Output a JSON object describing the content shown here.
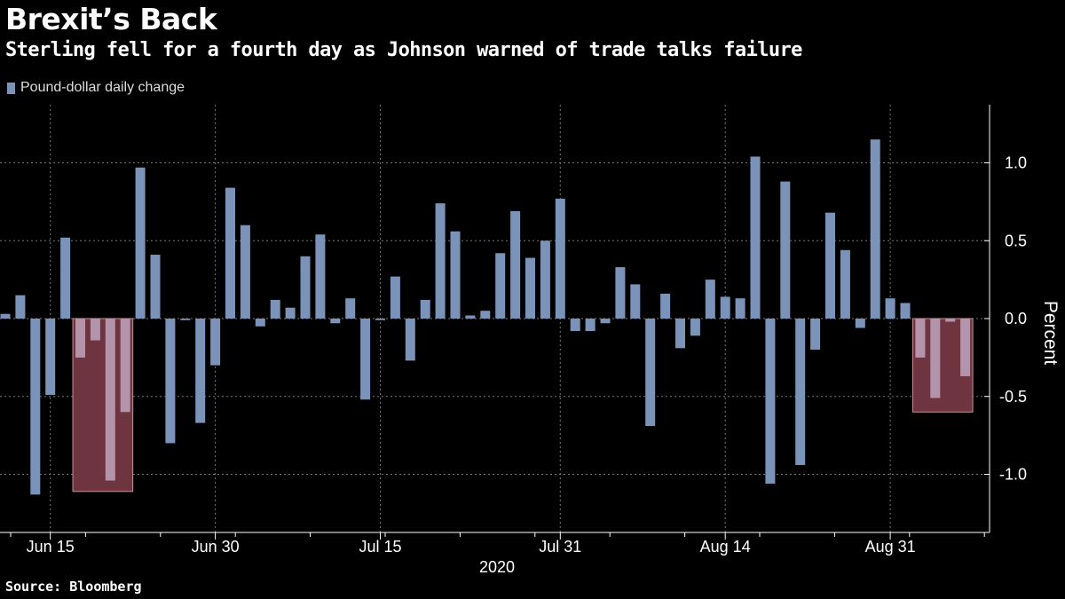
{
  "header": {
    "title": "Brexit’s Back",
    "subtitle": "Sterling fell for a fourth day as Johnson warned of trade talks failure"
  },
  "footer": {
    "source": "Source: Bloomberg"
  },
  "colors": {
    "bar": "#7b93b8",
    "highlight_bar": "#b494aa",
    "highlight_fill": "#6e3540",
    "highlight_stroke": "#c98f98",
    "grid": "#777777"
  },
  "chart_data": {
    "type": "bar",
    "series": [
      {
        "name": "Pound-dollar daily change"
      }
    ],
    "ylabel": "Percent",
    "ylim": [
      -1.35,
      1.38
    ],
    "yticks": [
      -1.0,
      -0.5,
      0.0,
      0.5,
      1.0
    ],
    "ytick_labels": [
      "-1.0",
      "-0.5",
      "0.0",
      "0.5",
      "1.0"
    ],
    "xticks": [
      {
        "index": 3,
        "label": "Jun 15"
      },
      {
        "index": 14,
        "label": "Jun 30"
      },
      {
        "index": 25,
        "label": "Jul 15"
      },
      {
        "index": 37,
        "label": "Jul 31"
      },
      {
        "index": 48,
        "label": "Aug 14"
      },
      {
        "index": 59,
        "label": "Aug 31"
      }
    ],
    "year_label": "2020",
    "values": [
      0.03,
      0.15,
      -1.13,
      -0.49,
      0.52,
      -0.25,
      -0.14,
      -1.04,
      -0.6,
      0.97,
      0.41,
      -0.8,
      -0.01,
      -0.67,
      -0.3,
      0.84,
      0.6,
      -0.05,
      0.12,
      0.07,
      0.4,
      0.54,
      -0.03,
      0.13,
      -0.52,
      -0.01,
      0.27,
      -0.27,
      0.12,
      0.74,
      0.56,
      0.02,
      0.05,
      0.42,
      0.69,
      0.39,
      0.5,
      0.77,
      -0.08,
      -0.08,
      -0.03,
      0.33,
      0.22,
      -0.69,
      0.16,
      -0.19,
      -0.11,
      0.25,
      0.14,
      0.13,
      1.04,
      -1.06,
      0.88,
      -0.94,
      -0.2,
      0.68,
      0.44,
      -0.06,
      1.15,
      0.13,
      0.1,
      -0.25,
      -0.51,
      -0.02,
      -0.37
    ],
    "highlights": [
      {
        "start": 4.5,
        "end": 8.5,
        "ymin": -1.11,
        "ymax": 0
      },
      {
        "start": 60.5,
        "end": 64.5,
        "ymin": -0.6,
        "ymax": 0
      }
    ],
    "grid": true
  }
}
